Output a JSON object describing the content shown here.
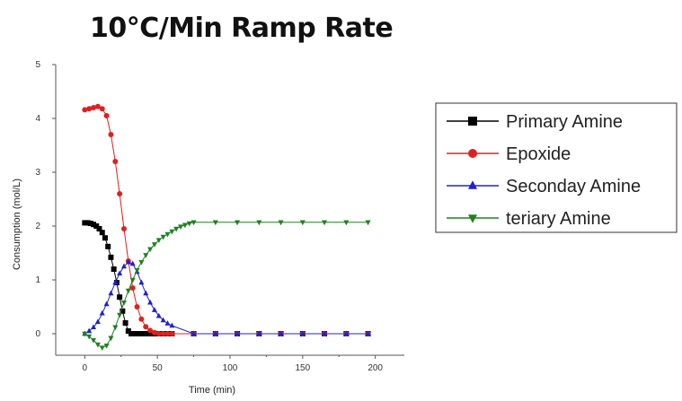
{
  "chart_data": {
    "type": "line",
    "title": "10°C/Min Ramp Rate",
    "xlabel": "Time (min)",
    "ylabel": "Consumption (mol/L)",
    "xlim": [
      -20,
      220
    ],
    "ylim": [
      -0.4,
      5
    ],
    "xticks": [
      0,
      50,
      100,
      150,
      200
    ],
    "yticks": [
      0,
      1,
      2,
      3,
      4,
      5
    ],
    "grid": false,
    "legend": "right",
    "series": [
      {
        "name": "Primary Amine",
        "color": "#000000",
        "marker": "square",
        "x": [
          0,
          2,
          4,
          6,
          8,
          10,
          12,
          14,
          16,
          18,
          20,
          22,
          24,
          26,
          28,
          30,
          32,
          34,
          36,
          38,
          40,
          42,
          44,
          46,
          48,
          50,
          52,
          54,
          56,
          58,
          60,
          75,
          90,
          105,
          120,
          135,
          150,
          165,
          180,
          195
        ],
        "y": [
          2.06,
          2.06,
          2.05,
          2.03,
          2.0,
          1.95,
          1.88,
          1.78,
          1.62,
          1.42,
          1.2,
          0.95,
          0.68,
          0.42,
          0.2,
          0.05,
          0.0,
          0.0,
          0.0,
          0.0,
          0.0,
          0.0,
          0.0,
          0.0,
          0.0,
          0.0,
          0.0,
          0.0,
          0.0,
          0.0,
          0.0,
          0.0,
          0.0,
          0.0,
          0.0,
          0.0,
          0.0,
          0.0,
          0.0,
          0.0
        ]
      },
      {
        "name": "Epoxide",
        "color": "#e02020",
        "marker": "circle",
        "x": [
          0,
          3,
          6,
          9,
          12,
          15,
          18,
          21,
          24,
          27,
          30,
          33,
          36,
          39,
          42,
          45,
          48,
          51,
          54,
          57,
          60,
          75,
          90,
          105,
          120,
          135,
          150,
          165,
          180,
          195
        ],
        "y": [
          4.16,
          4.18,
          4.2,
          4.22,
          4.18,
          4.05,
          3.7,
          3.2,
          2.6,
          1.95,
          1.35,
          0.85,
          0.5,
          0.27,
          0.13,
          0.06,
          0.02,
          0.0,
          0.0,
          0.0,
          0.0,
          0.0,
          0.0,
          0.0,
          0.0,
          0.0,
          0.0,
          0.0,
          0.0,
          0.0
        ]
      },
      {
        "name": "Seconday Amine",
        "color": "#2020d0",
        "marker": "triangle-up",
        "x": [
          0,
          3,
          6,
          9,
          12,
          15,
          18,
          21,
          24,
          27,
          30,
          33,
          36,
          39,
          42,
          45,
          48,
          51,
          54,
          57,
          60,
          75,
          90,
          105,
          120,
          135,
          150,
          165,
          180,
          195
        ],
        "y": [
          0.0,
          0.05,
          0.12,
          0.22,
          0.38,
          0.55,
          0.75,
          0.95,
          1.12,
          1.25,
          1.33,
          1.3,
          1.15,
          0.95,
          0.75,
          0.58,
          0.44,
          0.33,
          0.25,
          0.19,
          0.15,
          0.0,
          0.0,
          0.0,
          0.0,
          0.0,
          0.0,
          0.0,
          0.0,
          0.0
        ]
      },
      {
        "name": "teriary Amine",
        "color": "#208020",
        "marker": "triangle-down",
        "x": [
          0,
          3,
          6,
          9,
          12,
          15,
          18,
          21,
          24,
          27,
          30,
          33,
          36,
          39,
          42,
          45,
          48,
          51,
          54,
          57,
          60,
          63,
          66,
          69,
          72,
          75,
          90,
          105,
          120,
          135,
          150,
          165,
          180,
          195
        ],
        "y": [
          0.0,
          -0.05,
          -0.12,
          -0.2,
          -0.26,
          -0.22,
          -0.08,
          0.12,
          0.35,
          0.58,
          0.8,
          1.0,
          1.18,
          1.33,
          1.46,
          1.57,
          1.66,
          1.74,
          1.8,
          1.85,
          1.9,
          1.95,
          1.99,
          2.02,
          2.05,
          2.07,
          2.07,
          2.07,
          2.07,
          2.07,
          2.07,
          2.07,
          2.07,
          2.07
        ]
      }
    ]
  }
}
